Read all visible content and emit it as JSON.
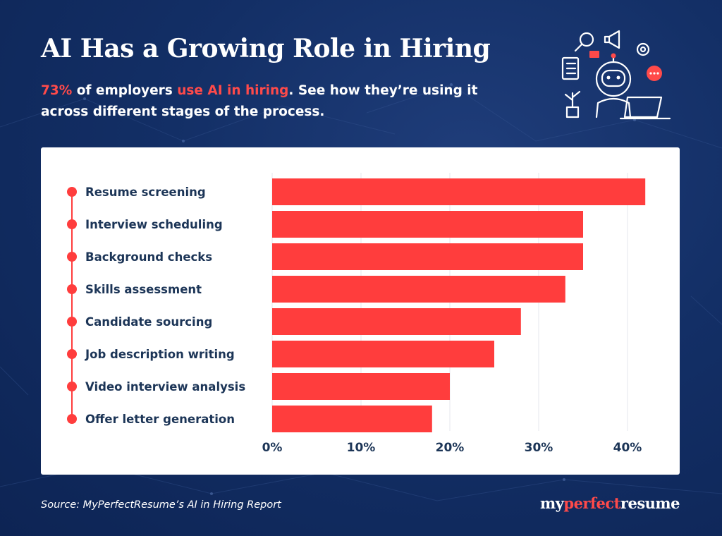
{
  "header": {
    "title": "AI Has a Growing Role in Hiring",
    "subtitle_pct": "73%",
    "subtitle_part1": " of employers ",
    "subtitle_hl": "use AI in hiring",
    "subtitle_part2": ". See how they’re using it across different stages of the process."
  },
  "footer": {
    "source": "Source: MyPerfectResume’s AI in Hiring Report",
    "brand_pre": "my",
    "brand_mid": "perfect",
    "brand_post": "resume"
  },
  "colors": {
    "bar": "#ff3d3d",
    "background": "#132f66",
    "text": "#1c3557",
    "accent": "#ff4a4a"
  },
  "icon": "robot-at-laptop-icon",
  "chart_data": {
    "type": "bar",
    "orientation": "horizontal",
    "categories": [
      "Resume screening",
      "Interview scheduling",
      "Background checks",
      "Skills assessment",
      "Candidate sourcing",
      "Job description writing",
      "Video interview analysis",
      "Offer letter generation"
    ],
    "values": [
      42,
      35,
      35,
      33,
      28,
      25,
      20,
      18
    ],
    "x_ticks": [
      "0%",
      "10%",
      "20%",
      "30%",
      "40%"
    ],
    "xlim": [
      0,
      45
    ],
    "grid": true,
    "color": "#ff3d3d"
  }
}
